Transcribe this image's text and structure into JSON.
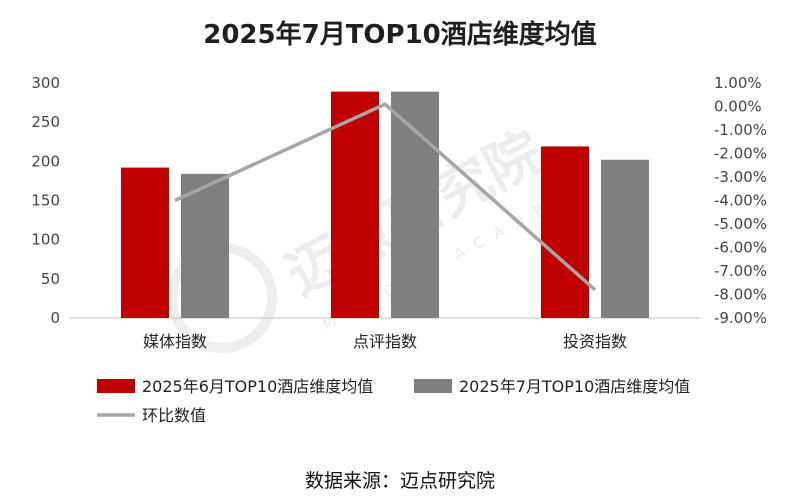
{
  "title": "2025年7月TOP10酒店维度均值",
  "source": "数据来源：迈点研究院",
  "watermark": {
    "main": "迈点研究院",
    "sub": "MEADIN ACADEMY"
  },
  "colors": {
    "june": "#c00000",
    "july": "#7f7f7f",
    "mom": "#a6a6a6",
    "axis": "#bfbfbf"
  },
  "chart_data": {
    "type": "bar",
    "categories": [
      "媒体指数",
      "点评指数",
      "投资指数"
    ],
    "series": [
      {
        "name": "2025年6月TOP10酒店维度均值",
        "kind": "bar",
        "axis": "left",
        "values": [
          192,
          289,
          219
        ]
      },
      {
        "name": "2025年7月TOP10酒店维度均值",
        "kind": "bar",
        "axis": "left",
        "values": [
          184,
          289,
          202
        ]
      },
      {
        "name": "环比数值",
        "kind": "line",
        "axis": "right",
        "values": [
          -4.0,
          0.1,
          -7.8
        ]
      }
    ],
    "y_left": {
      "min": 0,
      "max": 300,
      "ticks": [
        "0",
        "50",
        "100",
        "150",
        "200",
        "250",
        "300"
      ]
    },
    "y_right": {
      "min": -9,
      "max": 1,
      "ticks": [
        "1.00%",
        "0.00%",
        "-1.00%",
        "-2.00%",
        "-3.00%",
        "-4.00%",
        "-5.00%",
        "-6.00%",
        "-7.00%",
        "-8.00%",
        "-9.00%"
      ]
    },
    "grid": false,
    "legend_position": "bottom"
  }
}
